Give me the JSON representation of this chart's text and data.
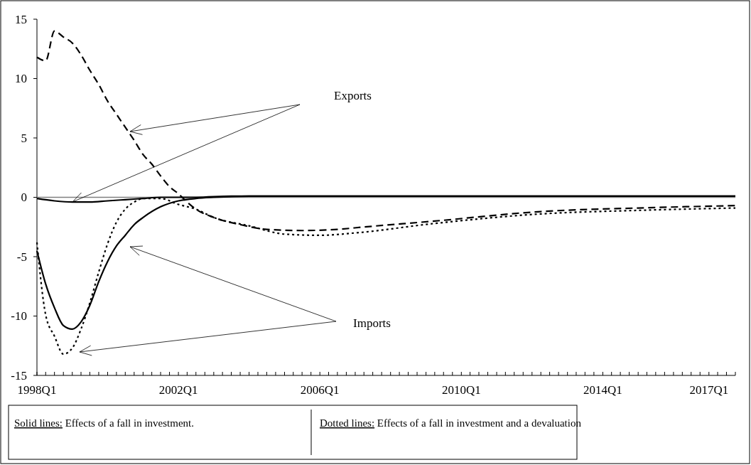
{
  "chart_data": {
    "type": "line",
    "xlim": [
      "1998-01",
      "2017-10"
    ],
    "ylim": [
      -15,
      15
    ],
    "yticks": [
      -15,
      -10,
      -5,
      0,
      5,
      10,
      15
    ],
    "xticks": [
      {
        "value": "1998-01",
        "label": "1998Q1"
      },
      {
        "value": "1998-04",
        "label": null
      },
      {
        "value": "1998-07",
        "label": null
      },
      {
        "value": "1998-10",
        "label": null
      },
      {
        "value": "1999-01",
        "label": null
      },
      {
        "value": "1999-04",
        "label": null
      },
      {
        "value": "1999-07",
        "label": null
      },
      {
        "value": "1999-10",
        "label": null
      },
      {
        "value": "2000-01",
        "label": null
      },
      {
        "value": "2000-04",
        "label": null
      },
      {
        "value": "2000-07",
        "label": null
      },
      {
        "value": "2000-10",
        "label": null
      },
      {
        "value": "2001-01",
        "label": null
      },
      {
        "value": "2001-04",
        "label": null
      },
      {
        "value": "2001-07",
        "label": null
      },
      {
        "value": "2001-10",
        "label": null
      },
      {
        "value": "2002-01",
        "label": "2002Q1"
      },
      {
        "value": "2002-04",
        "label": null
      },
      {
        "value": "2002-07",
        "label": null
      },
      {
        "value": "2002-10",
        "label": null
      },
      {
        "value": "2003-01",
        "label": null
      },
      {
        "value": "2003-04",
        "label": null
      },
      {
        "value": "2003-07",
        "label": null
      },
      {
        "value": "2003-10",
        "label": null
      },
      {
        "value": "2004-01",
        "label": null
      },
      {
        "value": "2004-04",
        "label": null
      },
      {
        "value": "2004-07",
        "label": null
      },
      {
        "value": "2004-10",
        "label": null
      },
      {
        "value": "2005-01",
        "label": null
      },
      {
        "value": "2005-04",
        "label": null
      },
      {
        "value": "2005-07",
        "label": null
      },
      {
        "value": "2005-10",
        "label": null
      },
      {
        "value": "2006-01",
        "label": "2006Q1"
      },
      {
        "value": "2006-04",
        "label": null
      },
      {
        "value": "2006-07",
        "label": null
      },
      {
        "value": "2006-10",
        "label": null
      },
      {
        "value": "2007-01",
        "label": null
      },
      {
        "value": "2007-04",
        "label": null
      },
      {
        "value": "2007-07",
        "label": null
      },
      {
        "value": "2007-10",
        "label": null
      },
      {
        "value": "2008-01",
        "label": null
      },
      {
        "value": "2008-04",
        "label": null
      },
      {
        "value": "2008-07",
        "label": null
      },
      {
        "value": "2008-10",
        "label": null
      },
      {
        "value": "2009-01",
        "label": null
      },
      {
        "value": "2009-04",
        "label": null
      },
      {
        "value": "2009-07",
        "label": null
      },
      {
        "value": "2009-10",
        "label": null
      },
      {
        "value": "2010-01",
        "label": "2010Q1"
      },
      {
        "value": "2010-04",
        "label": null
      },
      {
        "value": "2010-07",
        "label": null
      },
      {
        "value": "2010-10",
        "label": null
      },
      {
        "value": "2011-01",
        "label": null
      },
      {
        "value": "2011-04",
        "label": null
      },
      {
        "value": "2011-07",
        "label": null
      },
      {
        "value": "2011-10",
        "label": null
      },
      {
        "value": "2012-01",
        "label": null
      },
      {
        "value": "2012-04",
        "label": null
      },
      {
        "value": "2012-07",
        "label": null
      },
      {
        "value": "2012-10",
        "label": null
      },
      {
        "value": "2013-01",
        "label": null
      },
      {
        "value": "2013-04",
        "label": null
      },
      {
        "value": "2013-07",
        "label": null
      },
      {
        "value": "2013-10",
        "label": null
      },
      {
        "value": "2014-01",
        "label": "2014Q1"
      },
      {
        "value": "2014-04",
        "label": null
      },
      {
        "value": "2014-07",
        "label": null
      },
      {
        "value": "2014-10",
        "label": null
      },
      {
        "value": "2015-01",
        "label": null
      },
      {
        "value": "2015-04",
        "label": null
      },
      {
        "value": "2015-07",
        "label": null
      },
      {
        "value": "2015-10",
        "label": null
      },
      {
        "value": "2016-01",
        "label": null
      },
      {
        "value": "2016-04",
        "label": null
      },
      {
        "value": "2016-07",
        "label": null
      },
      {
        "value": "2016-10",
        "label": null
      },
      {
        "value": "2017-01",
        "label": "2017Q1"
      },
      {
        "value": "2017-04",
        "label": null
      },
      {
        "value": "2017-07",
        "label": null
      },
      {
        "value": "2017-10",
        "label": null
      }
    ],
    "grid": false,
    "marker": "none",
    "ref_lines": [
      {
        "axis": "y",
        "value": 0,
        "label": null,
        "color": "#808080"
      }
    ],
    "series": [
      {
        "color": "#000000",
        "line_style": "dashed",
        "x": [
          "1998-01",
          "1998-04",
          "1998-07",
          "1998-10",
          "1999-01",
          "1999-04",
          "1999-07",
          "1999-10",
          "2000-01",
          "2000-04",
          "2000-07",
          "2000-10",
          "2001-01",
          "2001-04",
          "2001-07",
          "2001-10",
          "2002-01",
          "2002-04",
          "2002-07",
          "2003-01",
          "2003-10",
          "2004-07",
          "2005-07",
          "2006-07",
          "2007-04",
          "2009-04",
          "2012-04",
          "2015-01",
          "2017-10"
        ],
        "values": [
          11.8,
          11.5,
          14.0,
          13.5,
          13.0,
          12.0,
          10.7,
          9.5,
          8.1,
          7.0,
          5.9,
          4.8,
          3.6,
          2.8,
          1.8,
          0.9,
          0.3,
          -0.4,
          -1.0,
          -1.7,
          -2.3,
          -2.7,
          -2.8,
          -2.7,
          -2.5,
          -2.0,
          -1.2,
          -0.9,
          -0.7
        ]
      },
      {
        "color": "#000000",
        "line_style": "solid",
        "x": [
          "1998-01",
          "1998-07",
          "1999-01",
          "1999-07",
          "2000-01",
          "2000-07",
          "2001-01",
          "2001-07",
          "2002-07",
          "2003-07",
          "2005-01",
          "2007-01",
          "2010-01",
          "2014-01",
          "2017-10"
        ],
        "values": [
          -0.1,
          -0.3,
          -0.4,
          -0.4,
          -0.3,
          -0.2,
          -0.1,
          0.0,
          0.0,
          0.1,
          0.1,
          0.1,
          0.1,
          0.1,
          0.1
        ]
      },
      {
        "color": "#000000",
        "line_style": "solid",
        "x": [
          "1998-01",
          "1998-04",
          "1998-07",
          "1998-10",
          "1999-01",
          "1999-04",
          "1999-07",
          "1999-10",
          "2000-01",
          "2000-04",
          "2000-07",
          "2000-10",
          "2001-01",
          "2001-07",
          "2002-01",
          "2002-07",
          "2003-01",
          "2004-01",
          "2007-01",
          "2010-01",
          "2014-01",
          "2017-10"
        ],
        "values": [
          -4.5,
          -7.3,
          -9.3,
          -10.8,
          -11.1,
          -10.5,
          -9.1,
          -7.1,
          -5.4,
          -4.1,
          -3.2,
          -2.3,
          -1.7,
          -0.8,
          -0.3,
          -0.1,
          0.0,
          0.1,
          0.1,
          0.1,
          0.1,
          0.1
        ]
      },
      {
        "color": "#000000",
        "line_style": "dotted",
        "x": [
          "1998-01",
          "1998-04",
          "1998-07",
          "1998-10",
          "1999-01",
          "1999-04",
          "1999-07",
          "1999-10",
          "2000-01",
          "2000-04",
          "2000-07",
          "2000-10",
          "2001-01",
          "2001-07",
          "2002-01",
          "2002-07",
          "2003-01",
          "2004-01",
          "2005-01",
          "2006-01",
          "2007-01",
          "2009-04",
          "2012-04",
          "2015-01",
          "2017-10"
        ],
        "values": [
          -3.8,
          -9.9,
          -11.7,
          -13.2,
          -12.7,
          -11.1,
          -8.9,
          -6.3,
          -3.9,
          -2.1,
          -1.0,
          -0.4,
          -0.1,
          -0.1,
          -0.6,
          -1.0,
          -1.7,
          -2.4,
          -3.1,
          -3.2,
          -3.0,
          -2.2,
          -1.4,
          -1.1,
          -0.9
        ]
      }
    ],
    "annotations": [
      "Exports",
      "Imports",
      "Solid lines: Effects of a fall in investment.",
      "Dotted lines: Effects of a fall in investment and a devaluation"
    ]
  }
}
